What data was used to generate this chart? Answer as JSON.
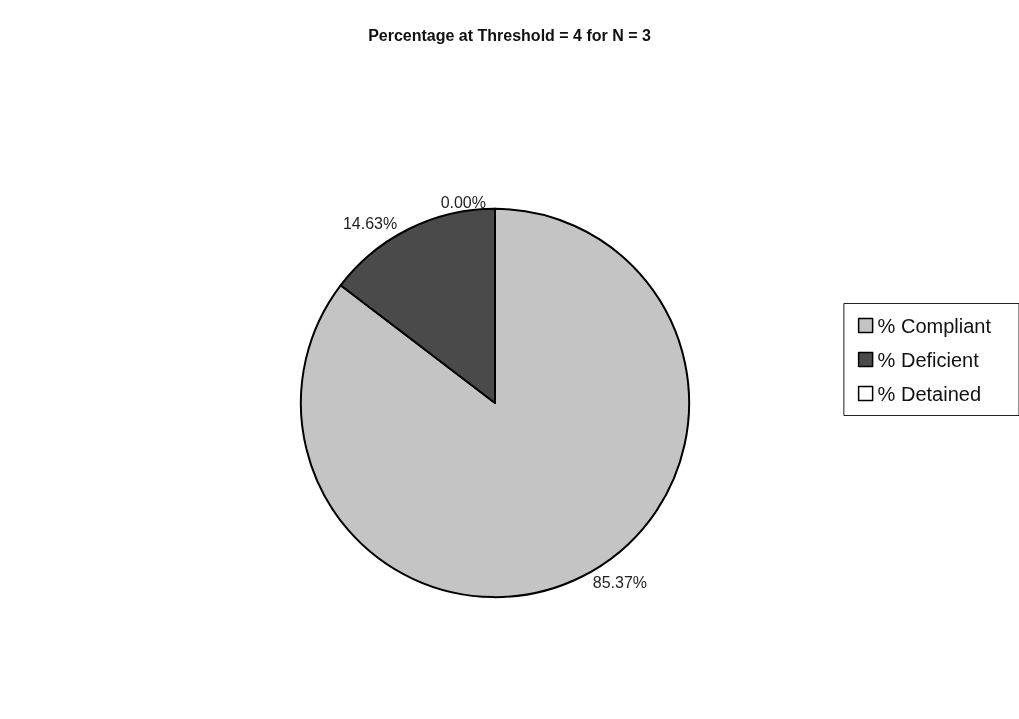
{
  "chart_data": {
    "type": "pie",
    "title": "Percentage at Threshold = 4 for N = 3",
    "categories": [
      "% Compliant",
      "% Deficient",
      "% Detained"
    ],
    "values": [
      85.37,
      14.63,
      0.0
    ],
    "value_labels": [
      "85.37%",
      "14.63%",
      "0.00%"
    ],
    "colors": [
      "#c4c4c4",
      "#4a4a4a",
      "#ffffff"
    ],
    "legend": "right"
  }
}
